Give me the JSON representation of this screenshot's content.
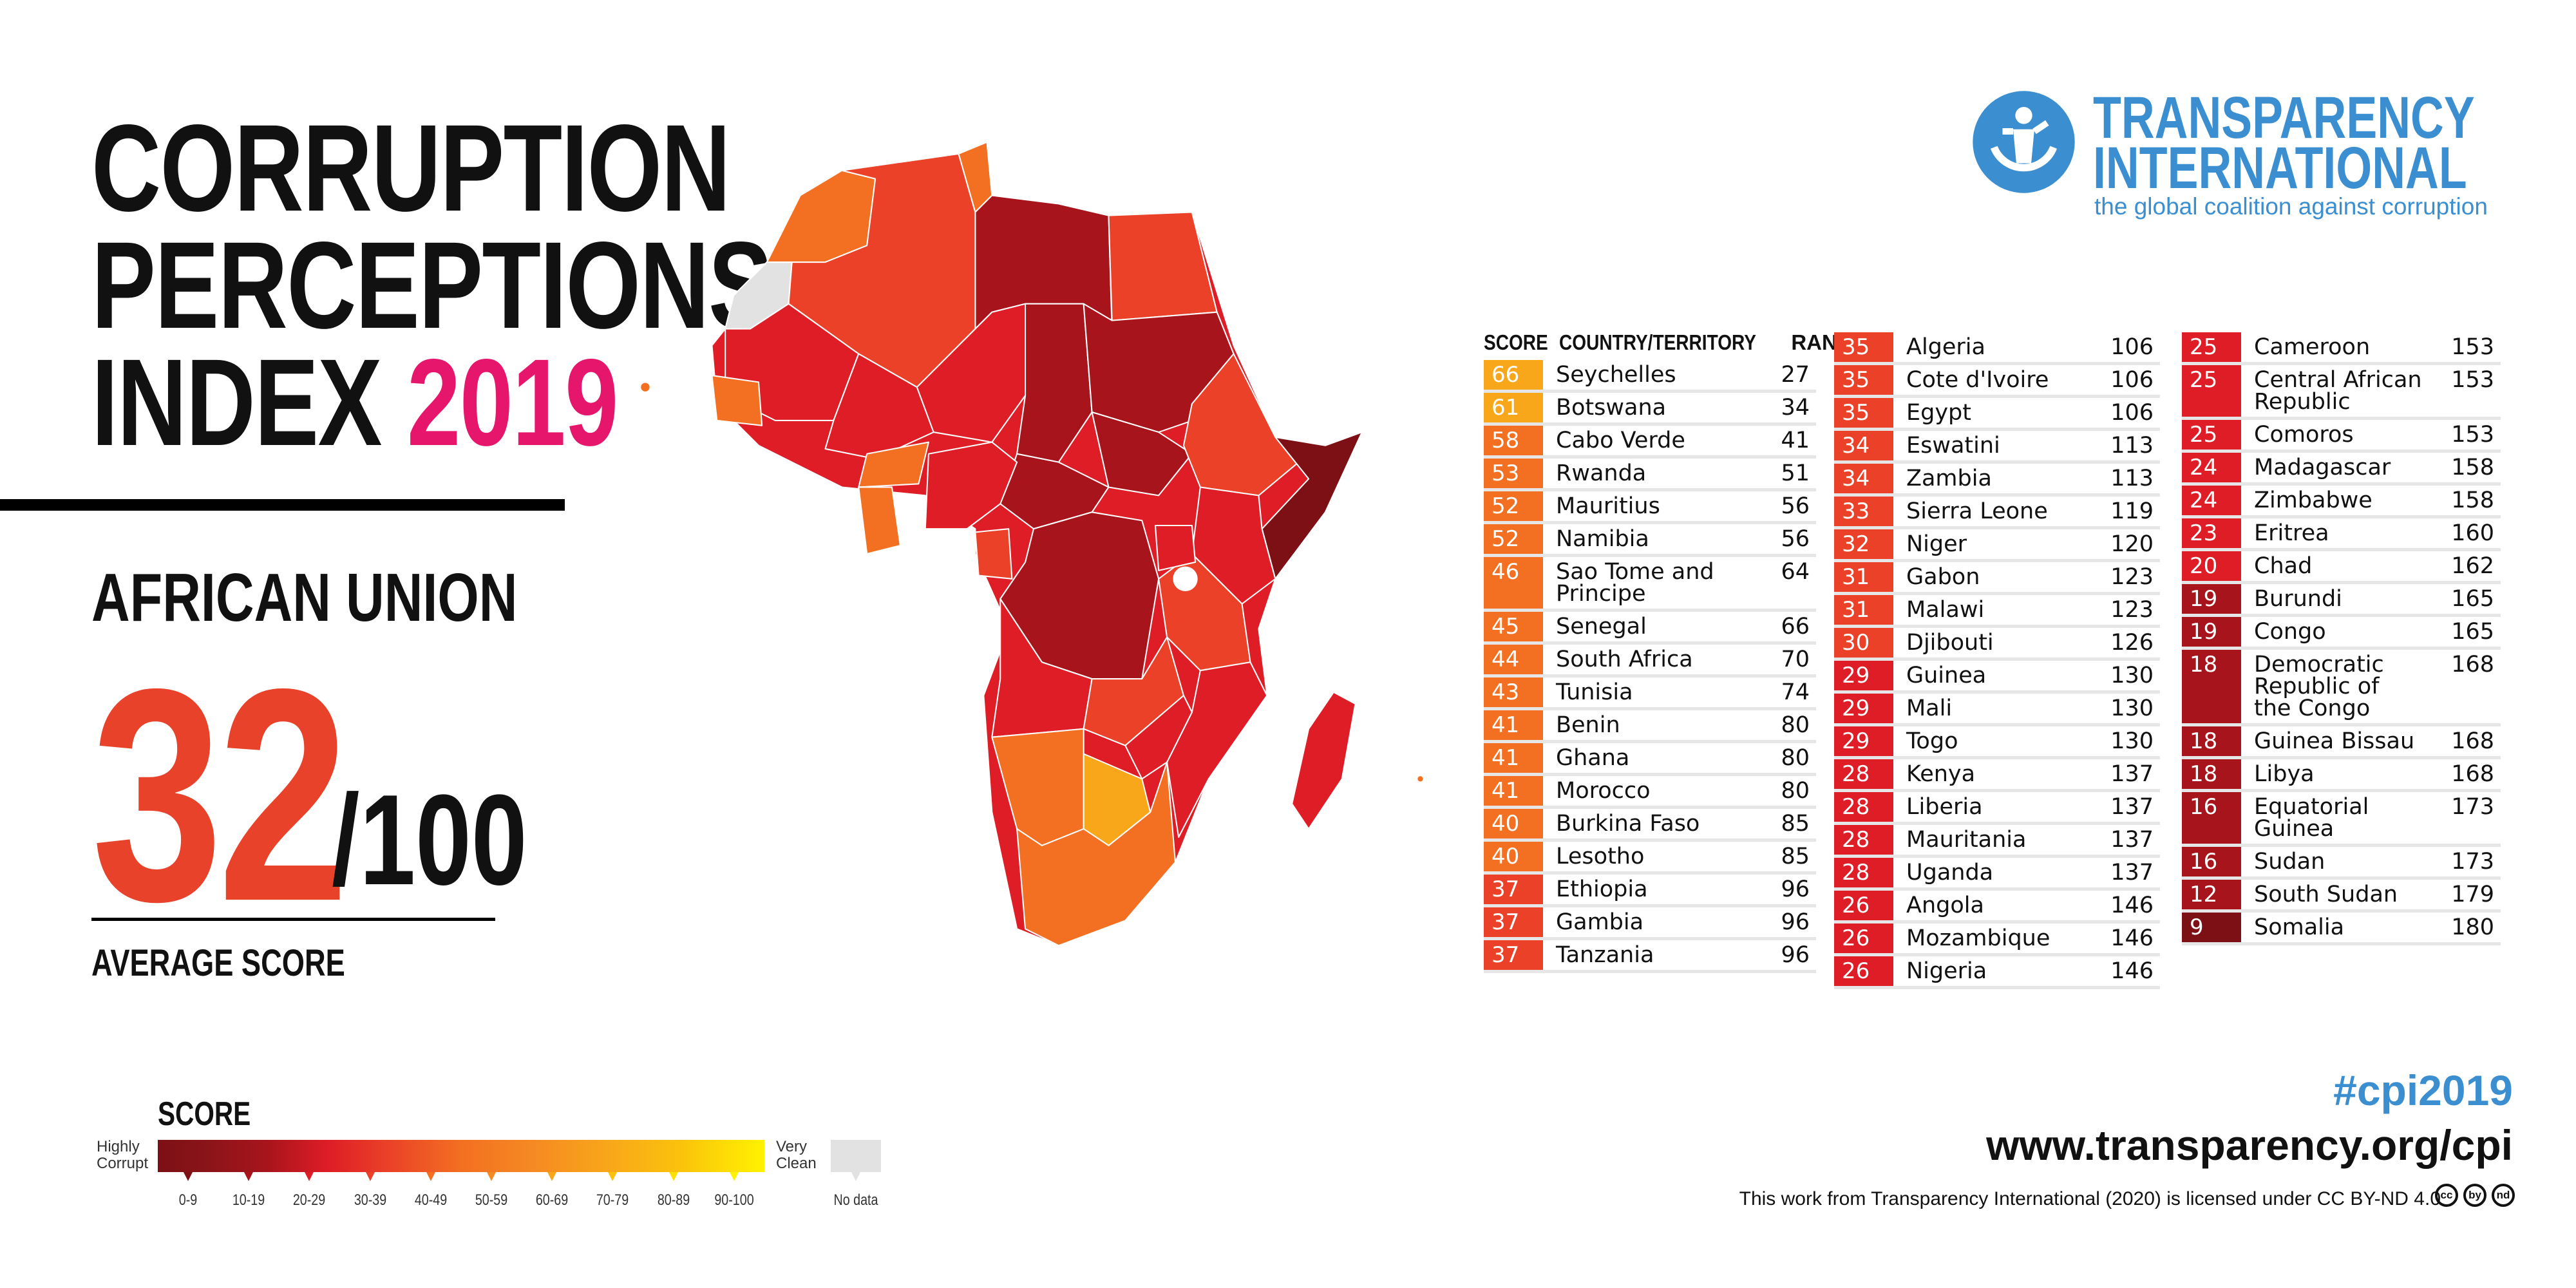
{
  "title": {
    "line1": "CORRUPTION",
    "line2": "PERCEPTIONS",
    "line3": "INDEX",
    "year": "2019"
  },
  "region": "AFRICAN UNION",
  "average": {
    "score": "32",
    "out_of": "/100",
    "label": "AVERAGE SCORE"
  },
  "brand": {
    "name1": "TRANSPARENCY",
    "name2": "INTERNATIONAL",
    "tagline": "the global coalition against corruption",
    "hashtag": "#cpi2019",
    "url": "www.transparency.org/cpi",
    "license": "This work from Transparency International (2020) is licensed under CC BY-ND 4.0",
    "cc_icons": [
      "cc",
      "by",
      "nd"
    ]
  },
  "colors": {
    "accent_red": "#e8422a",
    "brand_blue": "#3b8fd0",
    "year_pink": "#e5166b"
  },
  "legend": {
    "title": "SCORE",
    "low_label": "Highly Corrupt",
    "high_label": "Very Clean",
    "no_data": "No data",
    "bins": [
      "0-9",
      "10-19",
      "20-29",
      "30-39",
      "40-49",
      "50-59",
      "60-69",
      "70-79",
      "80-89",
      "90-100"
    ],
    "bin_colors": [
      "#7c1015",
      "#a8141c",
      "#de1d26",
      "#ea4128",
      "#f36f21",
      "#f58a22",
      "#f8a61a",
      "#fbc20c",
      "#fde000",
      "#fff200"
    ]
  },
  "chart_data": {
    "type": "table",
    "title": "Corruption Perceptions Index 2019 - African Union",
    "columns": [
      "SCORE",
      "COUNTRY/TERRITORY",
      "RANK"
    ],
    "rows": [
      [
        66,
        "Seychelles",
        27
      ],
      [
        61,
        "Botswana",
        34
      ],
      [
        58,
        "Cabo Verde",
        41
      ],
      [
        53,
        "Rwanda",
        51
      ],
      [
        52,
        "Mauritius",
        56
      ],
      [
        52,
        "Namibia",
        56
      ],
      [
        46,
        "Sao Tome and Principe",
        64
      ],
      [
        45,
        "Senegal",
        66
      ],
      [
        44,
        "South Africa",
        70
      ],
      [
        43,
        "Tunisia",
        74
      ],
      [
        41,
        "Benin",
        80
      ],
      [
        41,
        "Ghana",
        80
      ],
      [
        41,
        "Morocco",
        80
      ],
      [
        40,
        "Burkina Faso",
        85
      ],
      [
        40,
        "Lesotho",
        85
      ],
      [
        37,
        "Ethiopia",
        96
      ],
      [
        37,
        "Gambia",
        96
      ],
      [
        37,
        "Tanzania",
        96
      ],
      [
        35,
        "Algeria",
        106
      ],
      [
        35,
        "Cote d'Ivoire",
        106
      ],
      [
        35,
        "Egypt",
        106
      ],
      [
        34,
        "Eswatini",
        113
      ],
      [
        34,
        "Zambia",
        113
      ],
      [
        33,
        "Sierra Leone",
        119
      ],
      [
        32,
        "Niger",
        120
      ],
      [
        31,
        "Gabon",
        123
      ],
      [
        31,
        "Malawi",
        123
      ],
      [
        30,
        "Djibouti",
        126
      ],
      [
        29,
        "Guinea",
        130
      ],
      [
        29,
        "Mali",
        130
      ],
      [
        29,
        "Togo",
        130
      ],
      [
        28,
        "Kenya",
        137
      ],
      [
        28,
        "Liberia",
        137
      ],
      [
        28,
        "Mauritania",
        137
      ],
      [
        28,
        "Uganda",
        137
      ],
      [
        26,
        "Angola",
        146
      ],
      [
        26,
        "Mozambique",
        146
      ],
      [
        26,
        "Nigeria",
        146
      ],
      [
        25,
        "Cameroon",
        153
      ],
      [
        25,
        "Central African Republic",
        153
      ],
      [
        25,
        "Comoros",
        153
      ],
      [
        24,
        "Madagascar",
        158
      ],
      [
        24,
        "Zimbabwe",
        158
      ],
      [
        23,
        "Eritrea",
        160
      ],
      [
        20,
        "Chad",
        162
      ],
      [
        19,
        "Burundi",
        165
      ],
      [
        19,
        "Congo",
        165
      ],
      [
        18,
        "Democratic Republic of the Congo",
        168
      ],
      [
        18,
        "Guinea Bissau",
        168
      ],
      [
        18,
        "Libya",
        168
      ],
      [
        16,
        "Equatorial Guinea",
        173
      ],
      [
        16,
        "Sudan",
        173
      ],
      [
        12,
        "South Sudan",
        179
      ],
      [
        9,
        "Somalia",
        180
      ]
    ],
    "column_splits": [
      18,
      38,
      54
    ]
  }
}
